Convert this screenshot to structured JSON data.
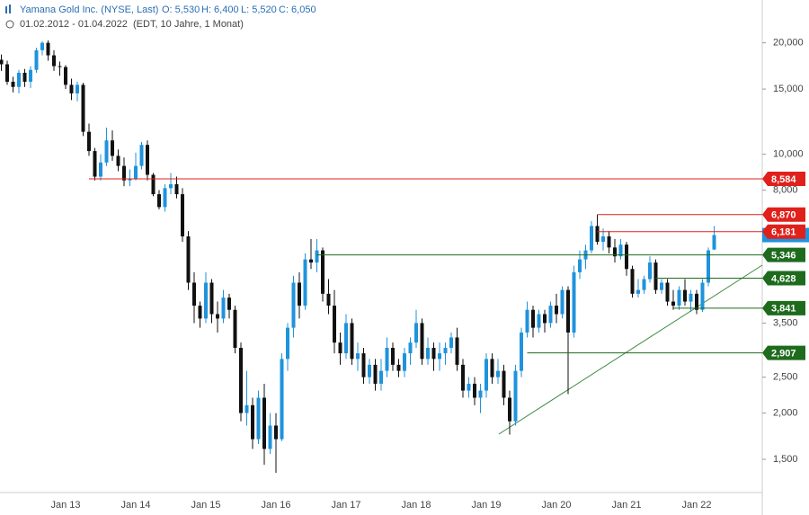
{
  "chart_data": {
    "type": "candlestick",
    "title": "Yamana Gold Inc. (NYSE, Last)",
    "quote": [
      "O: 5,530",
      "H: 6,400",
      "L: 5,520",
      "C: 6,050"
    ],
    "subtitle": "01.02.2012 - 01.04.2022",
    "subtitle_note": "(EDT, 10 Jahre, 1 Monat)",
    "log": true,
    "up_color": "#1f93dc",
    "down_color": "#111111",
    "ylim": [
      1.22,
      26.1
    ],
    "yticks": [
      {
        "value": 20,
        "label": "20,000"
      },
      {
        "value": 15,
        "label": "15,000"
      },
      {
        "value": 10,
        "label": "10,000"
      },
      {
        "value": 8,
        "label": "8,000"
      },
      {
        "value": 3.5,
        "label": "3,500"
      },
      {
        "value": 2.5,
        "label": "2,500"
      },
      {
        "value": 2,
        "label": "2,000"
      },
      {
        "value": 1.5,
        "label": "1,500"
      }
    ],
    "levels": [
      {
        "value": 8.584,
        "label": "8,584",
        "color": "#e0201b"
      },
      {
        "value": 6.87,
        "label": "6,870",
        "color": "#e0201b"
      },
      {
        "value": 6.181,
        "label": "6,181",
        "color": "#e0201b"
      },
      {
        "value": 5.346,
        "label": "5,346",
        "color": "#1e6b1e"
      },
      {
        "value": 4.628,
        "label": "4,628",
        "color": "#1e6b1e"
      },
      {
        "value": 3.841,
        "label": "3,841",
        "color": "#1e6b1e"
      },
      {
        "value": 2.907,
        "label": "2,907",
        "color": "#1e6b1e"
      }
    ],
    "categories": [
      null,
      null,
      null,
      null,
      null,
      null,
      null,
      null,
      null,
      null,
      null,
      "Jan 13",
      null,
      null,
      null,
      null,
      null,
      null,
      null,
      null,
      null,
      null,
      null,
      "Jan 14",
      null,
      null,
      null,
      null,
      null,
      null,
      null,
      null,
      null,
      null,
      null,
      "Jan 15",
      null,
      null,
      null,
      null,
      null,
      null,
      null,
      null,
      null,
      null,
      null,
      "Jan 16",
      null,
      null,
      null,
      null,
      null,
      null,
      null,
      null,
      null,
      null,
      null,
      "Jan 17",
      null,
      null,
      null,
      null,
      null,
      null,
      null,
      null,
      null,
      null,
      null,
      "Jan 18",
      null,
      null,
      null,
      null,
      null,
      null,
      null,
      null,
      null,
      null,
      null,
      "Jan 19",
      null,
      null,
      null,
      null,
      null,
      null,
      null,
      null,
      null,
      null,
      null,
      "Jan 20",
      null,
      null,
      null,
      null,
      null,
      null,
      null,
      null,
      null,
      null,
      null,
      "Jan 21",
      null,
      null,
      null,
      null,
      null,
      null,
      null,
      null,
      null,
      null,
      null,
      "Jan 22",
      null,
      null,
      null
    ],
    "ohlc": [
      [
        18.0,
        18.6,
        16.8,
        17.5
      ],
      [
        17.5,
        17.9,
        15.4,
        15.7
      ],
      [
        15.7,
        16.2,
        14.7,
        15.2
      ],
      [
        15.2,
        16.9,
        14.6,
        16.6
      ],
      [
        16.6,
        17.0,
        15.2,
        15.7
      ],
      [
        15.7,
        17.3,
        15.1,
        16.9
      ],
      [
        16.9,
        19.4,
        16.6,
        19.1
      ],
      [
        19.1,
        20.2,
        18.5,
        20.0
      ],
      [
        20.0,
        20.3,
        17.9,
        18.5
      ],
      [
        18.5,
        19.1,
        16.8,
        17.3
      ],
      [
        17.3,
        17.8,
        16.3,
        17.2
      ],
      [
        17.2,
        17.4,
        15.0,
        15.4
      ],
      [
        15.4,
        16.0,
        14.0,
        14.6
      ],
      [
        14.6,
        15.7,
        13.9,
        15.4
      ],
      [
        15.4,
        15.6,
        11.2,
        11.5
      ],
      [
        11.5,
        12.1,
        9.9,
        10.2
      ],
      [
        10.2,
        10.4,
        8.5,
        8.7
      ],
      [
        8.7,
        10.0,
        8.5,
        9.5
      ],
      [
        9.5,
        11.8,
        9.3,
        10.9
      ],
      [
        10.9,
        11.6,
        9.6,
        9.9
      ],
      [
        9.9,
        10.3,
        9.0,
        9.3
      ],
      [
        9.3,
        9.8,
        8.2,
        8.5
      ],
      [
        8.5,
        9.1,
        8.2,
        8.6
      ],
      [
        8.6,
        10.1,
        8.5,
        9.3
      ],
      [
        9.3,
        10.8,
        9.1,
        10.6
      ],
      [
        10.6,
        10.9,
        8.5,
        8.8
      ],
      [
        8.8,
        8.9,
        7.7,
        7.8
      ],
      [
        7.8,
        8.0,
        7.1,
        7.2
      ],
      [
        7.2,
        8.3,
        7.0,
        8.1
      ],
      [
        8.1,
        8.9,
        7.8,
        8.3
      ],
      [
        8.3,
        8.7,
        7.6,
        7.8
      ],
      [
        7.8,
        8.1,
        5.8,
        6.0
      ],
      [
        6.0,
        6.2,
        4.3,
        4.5
      ],
      [
        4.5,
        4.8,
        3.5,
        3.9
      ],
      [
        3.9,
        4.0,
        3.4,
        3.6
      ],
      [
        3.6,
        4.8,
        3.5,
        4.5
      ],
      [
        4.5,
        4.6,
        3.5,
        3.7
      ],
      [
        3.7,
        4.0,
        3.3,
        3.6
      ],
      [
        3.6,
        4.3,
        3.5,
        4.1
      ],
      [
        4.1,
        4.2,
        3.6,
        3.8
      ],
      [
        3.8,
        3.9,
        2.9,
        3.0
      ],
      [
        3.0,
        3.1,
        1.9,
        2.0
      ],
      [
        2.0,
        2.6,
        1.85,
        2.1
      ],
      [
        2.1,
        2.2,
        1.6,
        1.7
      ],
      [
        1.7,
        2.3,
        1.65,
        2.2
      ],
      [
        2.2,
        2.4,
        1.45,
        1.6
      ],
      [
        1.6,
        2.0,
        1.55,
        1.85
      ],
      [
        1.85,
        2.0,
        1.38,
        1.7
      ],
      [
        1.7,
        2.9,
        1.68,
        2.8
      ],
      [
        2.8,
        3.5,
        2.6,
        3.4
      ],
      [
        3.4,
        4.7,
        3.2,
        4.5
      ],
      [
        4.5,
        4.8,
        3.6,
        3.9
      ],
      [
        3.9,
        5.4,
        3.8,
        5.2
      ],
      [
        5.2,
        5.9,
        4.9,
        5.1
      ],
      [
        5.1,
        5.9,
        4.8,
        5.5
      ],
      [
        5.5,
        5.6,
        4.0,
        4.2
      ],
      [
        4.2,
        4.6,
        3.7,
        3.9
      ],
      [
        3.9,
        4.3,
        2.9,
        3.1
      ],
      [
        3.1,
        3.3,
        2.7,
        2.9
      ],
      [
        2.9,
        3.7,
        2.8,
        3.5
      ],
      [
        3.5,
        3.6,
        2.7,
        2.8
      ],
      [
        2.8,
        3.1,
        2.6,
        2.9
      ],
      [
        2.9,
        3.0,
        2.4,
        2.5
      ],
      [
        2.5,
        2.8,
        2.4,
        2.7
      ],
      [
        2.7,
        2.8,
        2.3,
        2.4
      ],
      [
        2.4,
        2.8,
        2.3,
        2.6
      ],
      [
        2.6,
        3.2,
        2.5,
        3.0
      ],
      [
        3.0,
        3.1,
        2.6,
        2.7
      ],
      [
        2.7,
        2.8,
        2.5,
        2.6
      ],
      [
        2.6,
        3.0,
        2.5,
        2.9
      ],
      [
        2.9,
        3.2,
        2.7,
        3.1
      ],
      [
        3.1,
        3.8,
        3.0,
        3.5
      ],
      [
        3.5,
        3.6,
        2.7,
        2.8
      ],
      [
        2.8,
        3.2,
        2.7,
        3.0
      ],
      [
        3.0,
        3.1,
        2.6,
        2.8
      ],
      [
        2.8,
        3.1,
        2.6,
        2.9
      ],
      [
        2.9,
        3.1,
        2.7,
        3.0
      ],
      [
        3.0,
        3.3,
        2.9,
        3.2
      ],
      [
        3.2,
        3.4,
        2.6,
        2.7
      ],
      [
        2.7,
        2.8,
        2.2,
        2.3
      ],
      [
        2.3,
        2.5,
        2.2,
        2.4
      ],
      [
        2.4,
        2.5,
        2.1,
        2.2
      ],
      [
        2.2,
        2.4,
        2.0,
        2.3
      ],
      [
        2.3,
        2.9,
        2.2,
        2.8
      ],
      [
        2.8,
        2.9,
        2.4,
        2.5
      ],
      [
        2.5,
        2.8,
        2.4,
        2.6
      ],
      [
        2.6,
        2.7,
        2.1,
        2.2
      ],
      [
        2.2,
        2.3,
        1.75,
        1.9
      ],
      [
        1.9,
        2.7,
        1.85,
        2.6
      ],
      [
        2.6,
        3.4,
        2.5,
        3.3
      ],
      [
        3.3,
        4.0,
        3.2,
        3.8
      ],
      [
        3.8,
        3.9,
        3.2,
        3.4
      ],
      [
        3.4,
        3.8,
        3.3,
        3.7
      ],
      [
        3.7,
        3.8,
        3.3,
        3.5
      ],
      [
        3.5,
        4.0,
        3.4,
        3.9
      ],
      [
        3.9,
        4.2,
        3.5,
        3.7
      ],
      [
        3.7,
        4.4,
        3.6,
        4.3
      ],
      [
        4.3,
        4.4,
        2.25,
        3.3
      ],
      [
        3.3,
        5.0,
        3.2,
        4.8
      ],
      [
        4.8,
        5.5,
        4.6,
        5.2
      ],
      [
        5.2,
        5.7,
        4.9,
        5.5
      ],
      [
        5.5,
        6.6,
        5.4,
        6.4
      ],
      [
        6.4,
        6.87,
        5.7,
        5.8
      ],
      [
        5.8,
        6.3,
        5.5,
        6.0
      ],
      [
        6.0,
        6.2,
        5.4,
        5.6
      ],
      [
        5.6,
        5.9,
        5.1,
        5.3
      ],
      [
        5.3,
        5.9,
        5.2,
        5.7
      ],
      [
        5.7,
        5.8,
        4.7,
        4.9
      ],
      [
        4.9,
        5.0,
        4.1,
        4.2
      ],
      [
        4.2,
        4.6,
        4.1,
        4.3
      ],
      [
        4.3,
        4.7,
        4.2,
        4.6
      ],
      [
        4.6,
        5.3,
        4.5,
        5.1
      ],
      [
        5.1,
        5.2,
        4.2,
        4.3
      ],
      [
        4.3,
        4.6,
        4.2,
        4.5
      ],
      [
        4.5,
        4.6,
        3.9,
        4.0
      ],
      [
        4.0,
        4.3,
        3.8,
        3.9
      ],
      [
        3.9,
        4.4,
        3.8,
        4.3
      ],
      [
        4.3,
        4.6,
        3.9,
        4.0
      ],
      [
        4.0,
        4.3,
        3.75,
        4.2
      ],
      [
        4.2,
        4.3,
        3.7,
        3.8
      ],
      [
        3.8,
        4.6,
        3.75,
        4.5
      ],
      [
        4.5,
        5.6,
        4.4,
        5.5
      ],
      [
        5.53,
        6.4,
        5.52,
        6.05
      ]
    ]
  }
}
